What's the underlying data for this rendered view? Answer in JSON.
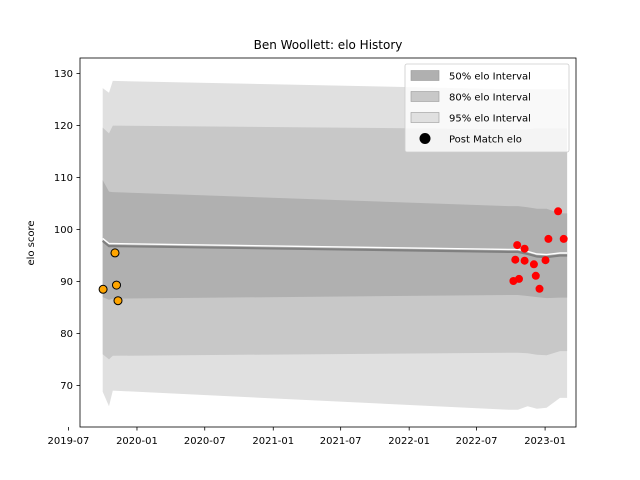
{
  "chart_data": {
    "type": "line",
    "title": "Ben Woollett: elo History",
    "xlabel": "",
    "ylabel": "elo score",
    "xlim": [
      "2019-08-01",
      "2023-03-25"
    ],
    "ylim": [
      62,
      133
    ],
    "x_ticks": [
      "2019-07",
      "2020-01",
      "2020-07",
      "2021-01",
      "2021-07",
      "2022-01",
      "2022-07",
      "2023-01"
    ],
    "x_tick_labels": [
      "2019-07",
      "2020-01",
      "2020-07",
      "2021-01",
      "2021-07",
      "2022-01",
      "2022-07",
      "2023-01"
    ],
    "y_ticks": [
      70,
      80,
      90,
      100,
      110,
      120,
      130
    ],
    "grid": false,
    "legend_position": "upper right",
    "legend": [
      {
        "label": "50% elo Interval",
        "kind": "band",
        "color": "#b0b0b0"
      },
      {
        "label": "80% elo Interval",
        "kind": "band",
        "color": "#c8c8c8"
      },
      {
        "label": "95% elo Interval",
        "kind": "band",
        "color": "#e0e0e0"
      },
      {
        "label": "Post Match elo",
        "kind": "marker",
        "color": "#000000"
      }
    ],
    "bands": {
      "dates": [
        "2019-10-01",
        "2019-10-18",
        "2019-10-28",
        "2022-09-25",
        "2022-10-20",
        "2022-11-15",
        "2022-12-10",
        "2023-01-05",
        "2023-02-10",
        "2023-03-01"
      ],
      "mean": [
        97.8,
        96.8,
        96.8,
        95.7,
        95.7,
        95.3,
        94.8,
        94.7,
        95.0,
        95.0
      ],
      "lower_50": [
        87.0,
        86.5,
        86.7,
        87.4,
        87.4,
        87.2,
        87.0,
        86.8,
        86.9,
        86.9
      ],
      "upper_50": [
        109.5,
        107.3,
        107.2,
        104.5,
        104.5,
        104.3,
        104.0,
        104.0,
        103.1,
        103.1
      ],
      "lower_80": [
        76.0,
        75.0,
        75.7,
        76.3,
        76.3,
        76.2,
        75.9,
        75.8,
        76.6,
        76.6
      ],
      "upper_80": [
        119.6,
        118.5,
        120.0,
        119.3,
        119.3,
        119.3,
        119.5,
        119.5,
        119.5,
        119.5
      ],
      "lower_95": [
        68.8,
        66.0,
        69.0,
        65.3,
        65.3,
        66.0,
        65.5,
        65.7,
        67.6,
        67.6
      ],
      "upper_95": [
        127.2,
        126.3,
        128.6,
        127.0,
        127.0,
        127.0,
        127.0,
        127.0,
        127.0,
        127.0
      ]
    },
    "series": [
      {
        "marker_color": "#ffa500",
        "edge_color": "#000000",
        "points": [
          {
            "x": "2019-10-02",
            "y": 88.5
          },
          {
            "x": "2019-11-03",
            "y": 95.5
          },
          {
            "x": "2019-11-07",
            "y": 89.3
          },
          {
            "x": "2019-11-11",
            "y": 86.3
          }
        ]
      },
      {
        "marker_color": "#ff0000",
        "points": [
          {
            "x": "2022-10-08",
            "y": 90.1
          },
          {
            "x": "2022-10-13",
            "y": 94.2
          },
          {
            "x": "2022-10-18",
            "y": 97.0
          },
          {
            "x": "2022-10-23",
            "y": 90.5
          },
          {
            "x": "2022-11-07",
            "y": 96.3
          },
          {
            "x": "2022-11-07",
            "y": 94.0
          },
          {
            "x": "2022-12-02",
            "y": 93.3
          },
          {
            "x": "2022-12-07",
            "y": 91.1
          },
          {
            "x": "2022-12-17",
            "y": 88.6
          },
          {
            "x": "2023-01-02",
            "y": 94.1
          },
          {
            "x": "2023-01-10",
            "y": 98.2
          },
          {
            "x": "2023-02-05",
            "y": 103.5
          },
          {
            "x": "2023-02-20",
            "y": 98.2
          }
        ]
      }
    ]
  }
}
